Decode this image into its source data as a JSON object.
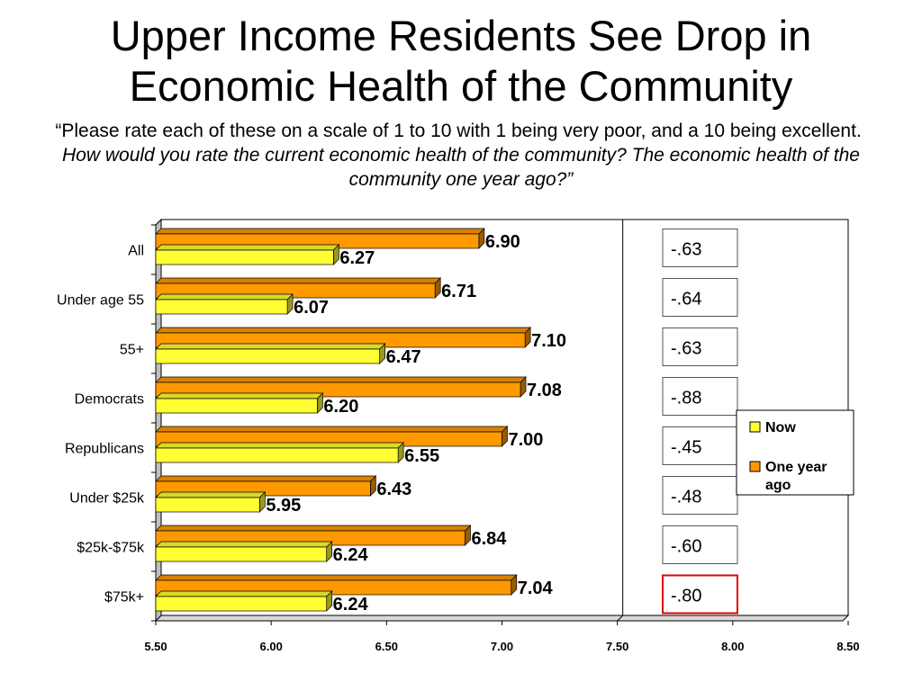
{
  "title_line1": "Upper Income Residents See Drop in",
  "title_line2": "Economic Health of the Community",
  "subtitle_plain": "“Please rate each of these on a scale of 1 to 10 with 1 being very poor, and a 10 being excellent.",
  "subtitle_italic": "How would you rate the current economic health of the community?  The economic health of the community one year ago?”",
  "chart_data": {
    "type": "bar",
    "orientation": "horizontal",
    "categories": [
      "All",
      "Under age 55",
      "55+",
      "Democrats",
      "Republicans",
      "Under $25k",
      "$25k-$75k",
      "$75k+"
    ],
    "series": [
      {
        "name": "Now",
        "color": "#ffff33",
        "values": [
          6.27,
          6.07,
          6.47,
          6.2,
          6.55,
          5.95,
          6.24,
          6.24
        ],
        "labels": [
          "6.27",
          "6.07",
          "6.47",
          "6.20",
          "6.55",
          "5.95",
          "6.24",
          "6.24"
        ]
      },
      {
        "name": "One year ago",
        "color": "#ff9900",
        "values": [
          6.9,
          6.71,
          7.1,
          7.08,
          7.0,
          6.43,
          6.84,
          7.04
        ],
        "labels": [
          "6.90",
          "6.71",
          "7.10",
          "7.08",
          "7.00",
          "6.43",
          "6.84",
          "7.04"
        ]
      }
    ],
    "differences": [
      "-.63",
      "-.64",
      "-.63",
      "-.88",
      "-.45",
      "-.48",
      "-.60",
      "-.80"
    ],
    "highlighted_difference": "-.80",
    "xlim": [
      5.5,
      8.5
    ],
    "xticks": [
      "5.50",
      "6.00",
      "6.50",
      "7.00",
      "7.50",
      "8.00",
      "8.50"
    ],
    "reference_line": 7.5,
    "legend_position": "right"
  }
}
